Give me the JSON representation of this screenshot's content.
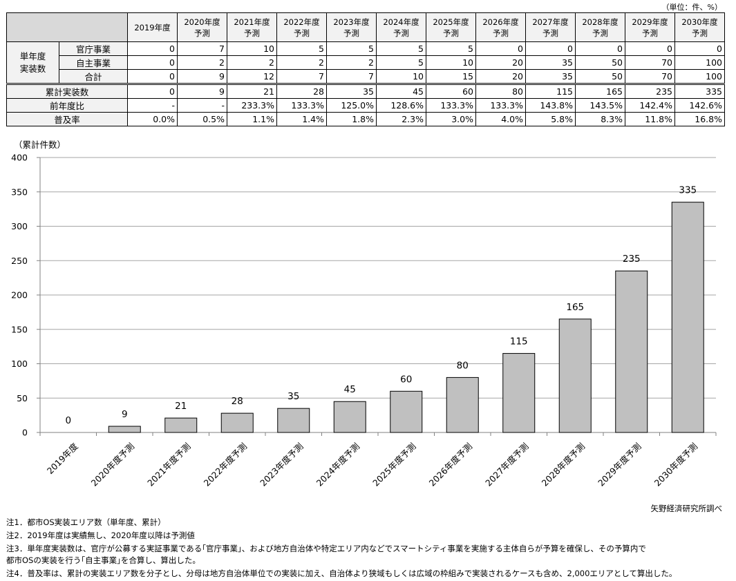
{
  "unit_note": "（単位：件、%）",
  "table": {
    "years": [
      "2019年度",
      "2020年度",
      "2021年度",
      "2022年度",
      "2023年度",
      "2024年度",
      "2025年度",
      "2026年度",
      "2027年度",
      "2028年度",
      "2029年度",
      "2030年度"
    ],
    "forecast_label": "予測",
    "forecast_flags": [
      false,
      true,
      true,
      true,
      true,
      true,
      true,
      true,
      true,
      true,
      true,
      true
    ],
    "single_year_group": "単年度\n実装数",
    "rows": [
      {
        "label": "官庁事業",
        "values": [
          "0",
          "7",
          "10",
          "5",
          "5",
          "5",
          "5",
          "0",
          "0",
          "0",
          "0",
          "0"
        ]
      },
      {
        "label": "自主事業",
        "values": [
          "0",
          "2",
          "2",
          "2",
          "2",
          "5",
          "10",
          "20",
          "35",
          "50",
          "70",
          "100"
        ]
      },
      {
        "label": "合計",
        "values": [
          "0",
          "9",
          "12",
          "7",
          "7",
          "10",
          "15",
          "20",
          "35",
          "50",
          "70",
          "100"
        ]
      },
      {
        "label": "累計実装数",
        "values": [
          "0",
          "9",
          "21",
          "28",
          "35",
          "45",
          "60",
          "80",
          "115",
          "165",
          "235",
          "335"
        ]
      },
      {
        "label": "前年度比",
        "values": [
          "-",
          "-",
          "233.3%",
          "133.3%",
          "125.0%",
          "128.6%",
          "133.3%",
          "133.3%",
          "143.8%",
          "143.5%",
          "142.4%",
          "142.6%"
        ]
      },
      {
        "label": "普及率",
        "values": [
          "0.0%",
          "0.5%",
          "1.1%",
          "1.4%",
          "1.8%",
          "2.3%",
          "3.0%",
          "4.0%",
          "5.8%",
          "8.3%",
          "11.8%",
          "16.8%"
        ]
      }
    ]
  },
  "chart_data": {
    "type": "bar",
    "ylabel": "（累計件数）",
    "categories": [
      "2019年度",
      "2020年度予測",
      "2021年度予測",
      "2022年度予測",
      "2023年度予測",
      "2024年度予測",
      "2025年度予測",
      "2026年度予測",
      "2027年度予測",
      "2028年度予測",
      "2029年度予測",
      "2030年度予測"
    ],
    "values": [
      0,
      9,
      21,
      28,
      35,
      45,
      60,
      80,
      115,
      165,
      235,
      335
    ],
    "ylim": [
      0,
      400
    ],
    "yticks": [
      0,
      50,
      100,
      150,
      200,
      250,
      300,
      350,
      400
    ],
    "grid": true,
    "bar_color": "#c0c0c0",
    "data_labels": true
  },
  "credit": "矢野経済研究所調べ",
  "notes": [
    "注1．都市OS実装エリア数（単年度、累計）",
    "注2．2019年度は実績無し、2020年度以降は予測値",
    "注3．単年度実装数は、官庁が公募する実証事業である｢官庁事業｣、および地方自治体や特定エリア内などでスマートシティ事業を実施する主体自らが予算を確保し、その予算内で",
    "都市OSの実装を行う｢自主事業｣を合算し、算出した。",
    "注4．普及率は、累計の実装エリア数を分子とし、分母は地方自治体単位での実装に加え、自治体より狭域もしくは広域の枠組みで実装されるケースも含め、2,000エリアとして算出した。"
  ]
}
